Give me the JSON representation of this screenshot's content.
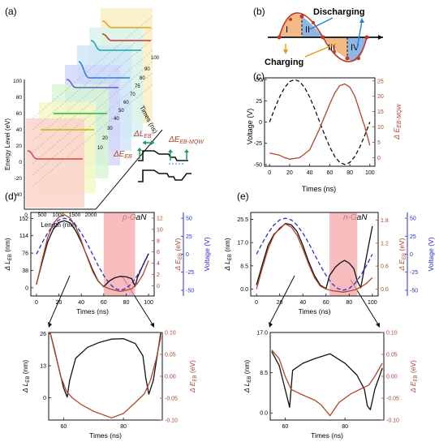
{
  "colors": {
    "black": "#111111",
    "brown": "#b3452a",
    "blue": "#2b2bd6",
    "pink": "#f4a5a8",
    "orange_fill": "#f3b987",
    "blue_fill": "#8fb7e3",
    "wave_red": "#c0392b"
  },
  "panels": {
    "a": {
      "label": "(a)",
      "ylabel": "Energy Level (eV)",
      "xlabel": "Length (nm)",
      "zlabel": "Times (ns)",
      "yticks": [
        "100",
        "80",
        "60",
        "40",
        "20",
        "0",
        "-20",
        "-40"
      ],
      "xticks": [
        "0",
        "500",
        "1000",
        "1500",
        "2000"
      ],
      "zticks": [
        "10",
        "20",
        "30",
        "40",
        "50",
        "60",
        "70",
        "75",
        "80",
        "90",
        "100"
      ],
      "inset": {
        "d_leb": "ΔL",
        "d_leb_sub": "EB",
        "d_eeb": "ΔE",
        "d_eeb_sub": "EB",
        "d_eebmqw": "ΔE",
        "d_eebmqw_sub": "EB-MQW"
      }
    },
    "b": {
      "label": "(b)",
      "discharging": "Discharging",
      "charging": "Charging",
      "regions": [
        "I",
        "II",
        "III",
        "IV"
      ]
    },
    "c": {
      "label": "(c)",
      "ylabel_left": "Voltage (V)",
      "ylabel_right": "Δ E",
      "ylabel_right_sub": "EB-MQW",
      "xlabel": "Times (ns)"
    },
    "d": {
      "label": "(d)",
      "annotation": "p-GaN"
    },
    "e": {
      "label": "(e)",
      "annotation": "n-GaN"
    }
  },
  "chart_data": [
    {
      "id": "c",
      "type": "line",
      "xlabel": "Times (ns)",
      "ylabel": "Voltage (V)",
      "ylabel_right": "Δ E EB-MQW",
      "xlim": [
        -5,
        105
      ],
      "ylim": [
        -52,
        52
      ],
      "ylim_right": [
        -2.8,
        26
      ],
      "xticks": [
        0,
        20,
        40,
        60,
        80,
        100
      ],
      "yticks": [
        -50,
        -25,
        0,
        25,
        50
      ],
      "yticks_right": [
        0,
        5,
        10,
        15,
        20,
        25
      ],
      "series": [
        {
          "axis": "left",
          "style": "dashed",
          "color": "#111111",
          "x": [
            0,
            5,
            10,
            15,
            20,
            25,
            30,
            35,
            40,
            45,
            50,
            55,
            60,
            65,
            70,
            75,
            80,
            85,
            90,
            95,
            100
          ],
          "y": [
            0,
            15.5,
            29.4,
            40.5,
            47.6,
            50,
            47.6,
            40.5,
            29.4,
            15.5,
            0,
            -15.5,
            -29.4,
            -40.5,
            -47.6,
            -50,
            -47.6,
            -40.5,
            -29.4,
            -15.5,
            0
          ]
        },
        {
          "axis": "right",
          "style": "solid",
          "color": "#b3452a",
          "x": [
            0,
            10,
            15,
            20,
            30,
            40,
            45,
            50,
            55,
            60,
            65,
            70,
            75,
            80,
            85,
            90,
            95,
            100
          ],
          "y": [
            1.5,
            0.8,
            0,
            -0.5,
            0,
            2.5,
            6,
            9.5,
            13.5,
            17.5,
            21,
            23.5,
            24,
            23,
            20,
            15,
            10,
            4
          ]
        }
      ]
    },
    {
      "id": "d-top",
      "type": "line",
      "xlabel": "Times (ns)",
      "ylabel": "Δ L EB (nm)",
      "ylabel_right": "Δ E EB (eV)",
      "ylabel_right2": "Voltage (V)",
      "xlim": [
        -5,
        105
      ],
      "ylim": [
        -18,
        165
      ],
      "ylim_right": [
        -1.8,
        13.0
      ],
      "ylim_right2": [
        -58,
        58
      ],
      "xticks": [
        0,
        20,
        40,
        60,
        80,
        100
      ],
      "yticks": [
        0,
        38,
        76,
        114,
        152
      ],
      "yticks_right": [
        0,
        2,
        4,
        6,
        8,
        10,
        12
      ],
      "yticks_right2": [
        -50,
        -25,
        0,
        25,
        50
      ],
      "highlight": [
        60,
        88
      ],
      "series": [
        {
          "axis": "left",
          "style": "solid",
          "color": "#111111",
          "x": [
            0,
            5,
            10,
            15,
            20,
            25,
            30,
            35,
            40,
            45,
            50,
            55,
            60,
            65,
            70,
            75,
            80,
            85,
            88,
            90,
            95,
            100
          ],
          "y": [
            8,
            55,
            100,
            128,
            143,
            147,
            142,
            125,
            100,
            70,
            40,
            15,
            2,
            15,
            22,
            25,
            24,
            20,
            3,
            22,
            50,
            75
          ]
        },
        {
          "axis": "right",
          "style": "solid",
          "color": "#b3452a",
          "x": [
            0,
            5,
            10,
            15,
            20,
            25,
            30,
            35,
            40,
            45,
            50,
            55,
            60,
            65,
            70,
            75,
            80,
            85,
            90,
            95,
            100
          ],
          "y": [
            0.2,
            4.5,
            8.5,
            11,
            12.2,
            12.6,
            12,
            10.5,
            8,
            5.2,
            2.6,
            0.8,
            -0.1,
            -0.5,
            -0.8,
            -1,
            -0.8,
            -0.5,
            0.4,
            2,
            4.5
          ]
        },
        {
          "axis": "right2",
          "style": "dashed",
          "color": "#2b2bd6",
          "x": [
            0,
            5,
            10,
            15,
            20,
            25,
            30,
            35,
            40,
            45,
            50,
            55,
            60,
            65,
            70,
            75,
            80,
            85,
            90,
            95,
            100
          ],
          "y": [
            0,
            15.5,
            29.4,
            40.5,
            47.6,
            50,
            47.6,
            40.5,
            29.4,
            15.5,
            0,
            -15.5,
            -29.4,
            -40.5,
            -47.6,
            -50,
            -47.6,
            -40.5,
            -29.4,
            -15.5,
            0
          ]
        }
      ]
    },
    {
      "id": "d-bottom",
      "type": "line",
      "xlabel": "Times (ns)",
      "ylabel": "Δ L EB (nm)",
      "ylabel_right": "Δ E EB (eV)",
      "xlim": [
        55,
        93
      ],
      "ylim": [
        -9,
        26.5
      ],
      "ylim_right": [
        -0.1,
        0.1
      ],
      "xticks": [
        60,
        80
      ],
      "yticks": [
        0,
        13,
        26
      ],
      "yticks_right": [
        -0.1,
        -0.05,
        0.0,
        0.05,
        0.1
      ],
      "series": [
        {
          "axis": "left",
          "style": "solid",
          "color": "#111111",
          "x": [
            55.5,
            58,
            60,
            61.2,
            62,
            64,
            68,
            72,
            76,
            80,
            84,
            86.5,
            87.5,
            88.5,
            90,
            92.5
          ],
          "y": [
            26.5,
            14,
            4,
            0.3,
            7,
            16,
            20.5,
            22.5,
            23.8,
            24,
            22,
            17,
            8,
            1.5,
            7,
            26.5
          ]
        },
        {
          "axis": "right",
          "style": "solid",
          "color": "#b3452a",
          "x": [
            55.5,
            57,
            59,
            61,
            63,
            66,
            70,
            74,
            76,
            80,
            84,
            87,
            89,
            91,
            92.5
          ],
          "y": [
            0.1,
            0.06,
            0.0,
            -0.035,
            -0.05,
            -0.065,
            -0.08,
            -0.09,
            -0.095,
            -0.085,
            -0.06,
            -0.04,
            -0.01,
            0.04,
            0.09
          ]
        }
      ]
    },
    {
      "id": "e-top",
      "type": "line",
      "xlabel": "Times (ns)",
      "ylabel": "Δ L EB (nm)",
      "ylabel_right": "Δ E EB (eV)",
      "ylabel_right2": "Voltage (V)",
      "xlim": [
        -5,
        105
      ],
      "ylim": [
        -2.5,
        28
      ],
      "ylim_right": [
        -0.18,
        2.0
      ],
      "ylim_right2": [
        -58,
        58
      ],
      "xticks": [
        0,
        20,
        40,
        60,
        80,
        100
      ],
      "yticks": [
        0.0,
        8.5,
        17.0,
        25.5
      ],
      "yticks_right": [
        0.0,
        0.6,
        1.2,
        1.8
      ],
      "yticks_right2": [
        -50,
        -25,
        0,
        25,
        50
      ],
      "highlight": [
        63,
        87
      ],
      "series": [
        {
          "axis": "left",
          "style": "solid",
          "color": "#111111",
          "x": [
            0,
            5,
            10,
            15,
            20,
            25,
            30,
            35,
            40,
            45,
            50,
            55,
            60,
            63,
            68,
            72,
            76,
            80,
            84,
            87,
            90,
            95,
            100
          ],
          "y": [
            1.5,
            9,
            16,
            20,
            22,
            24,
            23.5,
            21,
            16,
            10,
            5,
            1.5,
            0.2,
            5,
            8,
            9.5,
            10.5,
            9.5,
            7.5,
            3,
            0.5,
            12,
            23
          ]
        },
        {
          "axis": "right",
          "style": "solid",
          "color": "#b3452a",
          "x": [
            0,
            5,
            10,
            15,
            20,
            25,
            30,
            35,
            40,
            45,
            50,
            55,
            60,
            65,
            70,
            75,
            80,
            85,
            90,
            95,
            100
          ],
          "y": [
            0.0,
            0.55,
            1.05,
            1.4,
            1.6,
            1.7,
            1.62,
            1.4,
            1.05,
            0.65,
            0.3,
            0.08,
            0.0,
            -0.04,
            -0.06,
            -0.08,
            -0.05,
            -0.02,
            0.05,
            0.15,
            0.3
          ]
        },
        {
          "axis": "right2",
          "style": "dashed",
          "color": "#2b2bd6",
          "x": [
            0,
            5,
            10,
            15,
            20,
            25,
            30,
            35,
            40,
            45,
            50,
            55,
            60,
            65,
            70,
            75,
            80,
            85,
            90,
            95,
            100
          ],
          "y": [
            0,
            15.5,
            29.4,
            40.5,
            47.6,
            50,
            47.6,
            40.5,
            29.4,
            15.5,
            0,
            -15.5,
            -29.4,
            -40.5,
            -47.6,
            -50,
            -47.6,
            -40.5,
            -29.4,
            -15.5,
            0
          ]
        }
      ]
    },
    {
      "id": "e-bottom",
      "type": "line",
      "xlabel": "Times (ns)",
      "ylabel": "Δ L EB (nm)",
      "ylabel_right": "Δ E EB (eV)",
      "xlim": [
        55,
        93
      ],
      "ylim": [
        -1.5,
        17.0
      ],
      "ylim_right": [
        -0.1,
        0.1
      ],
      "xticks": [
        60,
        80
      ],
      "yticks": [
        0.0,
        8.5,
        17.0
      ],
      "yticks_right": [
        -0.1,
        -0.05,
        0.0,
        0.05,
        0.1
      ],
      "series": [
        {
          "axis": "left",
          "style": "solid",
          "color": "#111111",
          "x": [
            55.5,
            58,
            60,
            61.5,
            62.5,
            66,
            70,
            75,
            80,
            84,
            86.5,
            87.5,
            88.5,
            90,
            92.5
          ],
          "y": [
            13,
            10,
            5,
            1.2,
            9,
            10.5,
            11.5,
            12.5,
            10.5,
            8,
            5,
            1.5,
            0.7,
            5,
            9.5
          ]
        },
        {
          "axis": "right",
          "style": "solid",
          "color": "#b3452a",
          "x": [
            55.5,
            58,
            60,
            62,
            65,
            70,
            72,
            75,
            78,
            82,
            85,
            88,
            90,
            92.5
          ],
          "y": [
            0.06,
            0.04,
            0.0,
            -0.03,
            -0.04,
            -0.055,
            -0.065,
            -0.09,
            -0.06,
            -0.04,
            -0.03,
            -0.02,
            0.0,
            0.03
          ]
        }
      ]
    }
  ]
}
